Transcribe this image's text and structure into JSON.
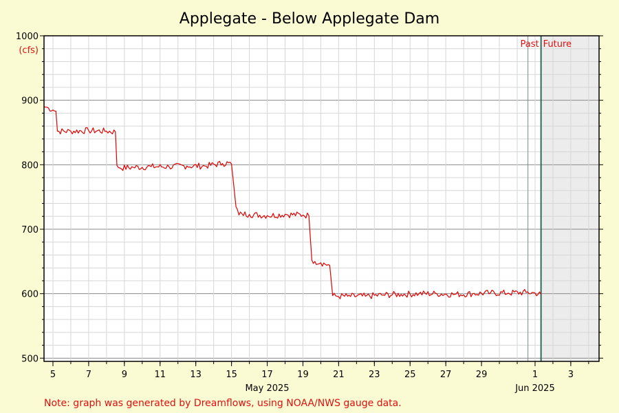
{
  "chart_data": {
    "type": "line",
    "title": "Applegate - Below Applegate Dam",
    "ylabel": "(cfs)",
    "ylim": [
      495,
      1000
    ],
    "y_ticks": [
      500,
      600,
      700,
      800,
      900,
      1000
    ],
    "x_range": [
      "2025-05-04T12:00",
      "2025-06-04T14:00"
    ],
    "x_tick_labels": [
      {
        "date": "2025-05-05",
        "label": "5"
      },
      {
        "date": "2025-05-07",
        "label": "7"
      },
      {
        "date": "2025-05-09",
        "label": "9"
      },
      {
        "date": "2025-05-11",
        "label": "11"
      },
      {
        "date": "2025-05-13",
        "label": "13"
      },
      {
        "date": "2025-05-15",
        "label": "15"
      },
      {
        "date": "2025-05-17",
        "label": "17"
      },
      {
        "date": "2025-05-19",
        "label": "19"
      },
      {
        "date": "2025-05-21",
        "label": "21"
      },
      {
        "date": "2025-05-23",
        "label": "23"
      },
      {
        "date": "2025-05-25",
        "label": "25"
      },
      {
        "date": "2025-05-27",
        "label": "27"
      },
      {
        "date": "2025-05-29",
        "label": "29"
      },
      {
        "date": "2025-06-01",
        "label": "1"
      },
      {
        "date": "2025-06-03",
        "label": "3"
      }
    ],
    "month_labels": [
      {
        "date": "2025-05-17",
        "label": "May 2025"
      },
      {
        "date": "2025-06-01",
        "label": "Jun 2025"
      }
    ],
    "now": "2025-06-01T08:00",
    "past_label": "Past",
    "future_label": "Future",
    "grid": true,
    "series": [
      {
        "color": "#e00000",
        "x": [
          "2025-05-04T12:00",
          "2025-05-04T18:00",
          "2025-05-05T00:00",
          "2025-05-05T04:00",
          "2025-05-05T06:00",
          "2025-05-06T00:00",
          "2025-05-07T00:00",
          "2025-05-08T00:00",
          "2025-05-08T12:00",
          "2025-05-08T14:00",
          "2025-05-08T18:00",
          "2025-05-09T12:00",
          "2025-05-10T12:00",
          "2025-05-11T12:00",
          "2025-05-12T12:00",
          "2025-05-13T12:00",
          "2025-05-14T12:00",
          "2025-05-14T20:00",
          "2025-05-15T00:00",
          "2025-05-15T06:00",
          "2025-05-15T10:00",
          "2025-05-15T14:00",
          "2025-05-16T00:00",
          "2025-05-17T00:00",
          "2025-05-18T00:00",
          "2025-05-19T00:00",
          "2025-05-19T08:00",
          "2025-05-19T12:00",
          "2025-05-19T16:00",
          "2025-05-20T00:00",
          "2025-05-20T12:00",
          "2025-05-20T16:00",
          "2025-05-20T22:00",
          "2025-05-21T12:00",
          "2025-05-22T12:00",
          "2025-05-23T12:00",
          "2025-05-24T12:00",
          "2025-05-25T12:00",
          "2025-05-26T12:00",
          "2025-05-27T12:00",
          "2025-05-28T12:00",
          "2025-05-29T12:00",
          "2025-05-30T12:00",
          "2025-05-31T12:00",
          "2025-06-01T00:00",
          "2025-06-01T08:00"
        ],
        "y": [
          890,
          888,
          885,
          883,
          852,
          852,
          853,
          852,
          851,
          799,
          795,
          796,
          797,
          797,
          798,
          798,
          802,
          803,
          801,
          735,
          722,
          724,
          723,
          721,
          723,
          722,
          721,
          652,
          650,
          648,
          644,
          597,
          596,
          596,
          596,
          598,
          599,
          600,
          600,
          599,
          600,
          601,
          601,
          602,
          601,
          599
        ]
      }
    ]
  },
  "footer": {
    "note": "Note: graph was generated by Dreamflows, using NOAA/NWS gauge data."
  },
  "colors": {
    "background": "#fbfbd3",
    "plot_background": "#ffffff",
    "future_shade": "#ececec",
    "accent_red": "#e01010",
    "now_line": "#2e6b57"
  }
}
